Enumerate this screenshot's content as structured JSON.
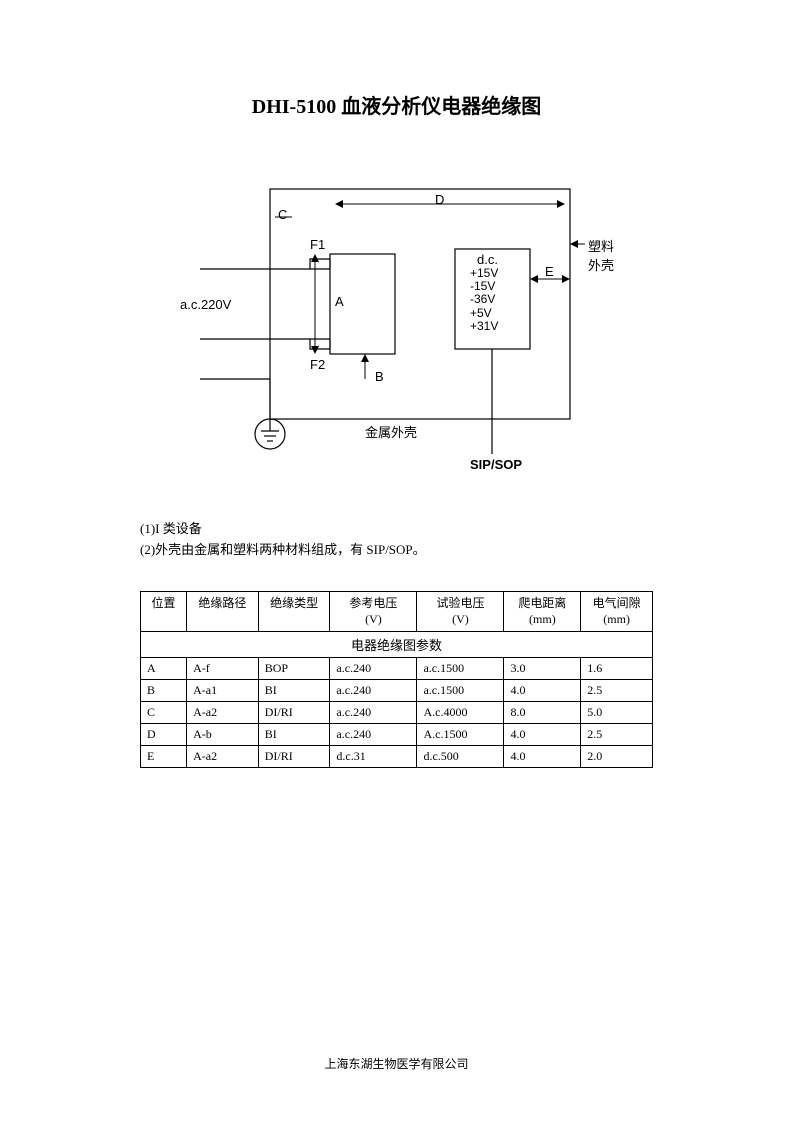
{
  "title": "DHI-5100 血液分析仪电器绝缘图",
  "diagram": {
    "labels": {
      "C": "C",
      "D": "D",
      "F1": "F1",
      "F2": "F2",
      "A": "A",
      "B": "B",
      "E": "E",
      "ac_input": "a.c.220V",
      "dc_title": "d.c.",
      "dc_lines": [
        "+15V",
        "-15V",
        "-36V",
        "+5V",
        "+31V"
      ],
      "plastic_enclosure": "塑料外壳",
      "metal_enclosure": "金属外壳",
      "sip_sop": "SIP/SOP"
    },
    "colors": {
      "stroke": "#000000",
      "bg": "#ffffff"
    },
    "stroke_width": 1.2
  },
  "notes": {
    "line1": "(1)I 类设备",
    "line2": "(2)外壳由金属和塑料两种材料组成，有 SIP/SOP。"
  },
  "table": {
    "caption": "电器绝缘图参数",
    "columns": [
      {
        "label": "位置",
        "sublabel": ""
      },
      {
        "label": "绝缘路径",
        "sublabel": ""
      },
      {
        "label": "绝缘类型",
        "sublabel": ""
      },
      {
        "label": "参考电压",
        "sublabel": "(V)"
      },
      {
        "label": "试验电压",
        "sublabel": "(V)"
      },
      {
        "label": "爬电距离",
        "sublabel": "(mm)"
      },
      {
        "label": "电气间隙",
        "sublabel": "(mm)"
      }
    ],
    "rows": [
      [
        "A",
        "A-f",
        "BOP",
        "a.c.240",
        "a.c.1500",
        "3.0",
        "1.6"
      ],
      [
        "B",
        "A-a1",
        "BI",
        "a.c.240",
        "a.c.1500",
        "4.0",
        "2.5"
      ],
      [
        "C",
        "A-a2",
        "DI/RI",
        "a.c.240",
        "A.c.4000",
        "8.0",
        "5.0"
      ],
      [
        "D",
        "A-b",
        "BI",
        "a.c.240",
        "A.c.1500",
        "4.0",
        "2.5"
      ],
      [
        "E",
        "A-a2",
        "DI/RI",
        "d.c.31",
        "d.c.500",
        "4.0",
        "2.0"
      ]
    ],
    "col_widths_pct": [
      9,
      14,
      14,
      17,
      17,
      15,
      14
    ]
  },
  "footer": "上海东湖生物医学有限公司"
}
